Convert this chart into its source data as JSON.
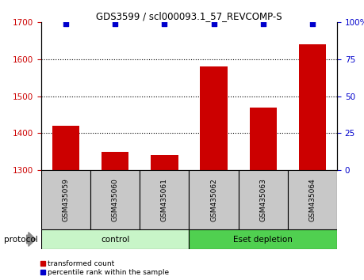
{
  "title": "GDS3599 / scl000093.1_57_REVCOMP-S",
  "samples": [
    "GSM435059",
    "GSM435060",
    "GSM435061",
    "GSM435062",
    "GSM435063",
    "GSM435064"
  ],
  "red_values": [
    1420,
    1350,
    1340,
    1580,
    1470,
    1640
  ],
  "blue_values": [
    99,
    99,
    99,
    99,
    99,
    99
  ],
  "ylim_left": [
    1300,
    1700
  ],
  "ylim_right": [
    0,
    100
  ],
  "yticks_left": [
    1300,
    1400,
    1500,
    1600,
    1700
  ],
  "yticks_right": [
    0,
    25,
    50,
    75,
    100
  ],
  "ytick_labels_right": [
    "0",
    "25",
    "50",
    "75",
    "100%"
  ],
  "groups": [
    {
      "label": "control",
      "color": "#c8f5c8",
      "start": 0,
      "end": 3
    },
    {
      "label": "Eset depletion",
      "color": "#50d050",
      "start": 3,
      "end": 6
    }
  ],
  "protocol_label": "protocol",
  "red_color": "#cc0000",
  "blue_color": "#0000cc",
  "bar_width": 0.55,
  "background_color": "#ffffff",
  "legend_red_label": "transformed count",
  "legend_blue_label": "percentile rank within the sample",
  "tick_label_color_left": "#cc0000",
  "tick_label_color_right": "#0000cc",
  "sample_bg_color": "#c8c8c8"
}
